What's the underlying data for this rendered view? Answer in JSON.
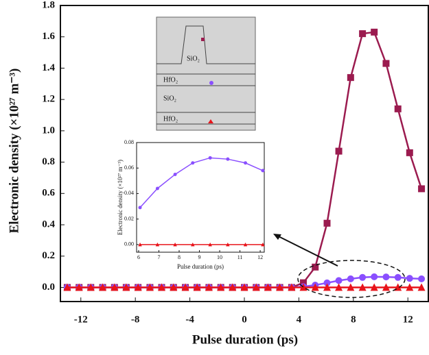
{
  "chart_data": [
    {
      "type": "line",
      "x_label": "Pulse duration (ps)",
      "y_label": "Electronic density (×10²⁷ m⁻³)",
      "x": [
        -13,
        -12.13,
        -11.27,
        -10.4,
        -9.53,
        -8.67,
        -7.8,
        -6.93,
        -6.07,
        -5.2,
        -4.33,
        -3.47,
        -2.6,
        -1.73,
        -0.87,
        0,
        0.87,
        1.73,
        2.6,
        3.47,
        4.33,
        5.2,
        6.07,
        6.93,
        7.8,
        8.67,
        9.53,
        10.4,
        11.27,
        12.13,
        13
      ],
      "xlim": [
        -13.5,
        13.5
      ],
      "xticks": [
        -12,
        -8,
        -4,
        0,
        4,
        8,
        12
      ],
      "ylim": [
        -0.09,
        1.8
      ],
      "yticks": [
        {
          "value": 0,
          "label": "0.0"
        },
        0.2,
        0.4,
        0.6,
        0.8,
        {
          "value": 1,
          "label": "1.0"
        },
        1.2,
        1.4,
        1.6,
        1.8
      ],
      "series": [
        {
          "marker": "square",
          "color": "#9b1b4f",
          "values": [
            0,
            0,
            0,
            0,
            0,
            0,
            0,
            0,
            0,
            0,
            0,
            0,
            0,
            0,
            0,
            0,
            0,
            0,
            0,
            0,
            0.03,
            0.13,
            0.41,
            0.87,
            1.34,
            1.62,
            1.63,
            1.43,
            1.14,
            0.86,
            0.63
          ]
        },
        {
          "marker": "circle",
          "color": "#8a4fff",
          "values": [
            0,
            0,
            0,
            0,
            0,
            0,
            0,
            0,
            0,
            0,
            0,
            0,
            0,
            0,
            0,
            0,
            0,
            0,
            0,
            0,
            0.005,
            0.015,
            0.029,
            0.044,
            0.055,
            0.064,
            0.068,
            0.067,
            0.064,
            0.058,
            0.055
          ]
        },
        {
          "marker": "triangle",
          "color": "#e8141b",
          "values": [
            0,
            0,
            0,
            0,
            0,
            0,
            0,
            0,
            0,
            0,
            0,
            0,
            0,
            0,
            0,
            0,
            0,
            0,
            0,
            0,
            0,
            0,
            0,
            0,
            0,
            0,
            0,
            0,
            0,
            0,
            0
          ]
        }
      ]
    },
    {
      "type": "line",
      "x_label": "Pulse duration (ps)",
      "y_label": "Electronic density (×10²⁷ m⁻³)",
      "x": [
        6.07,
        6.93,
        7.8,
        8.67,
        9.53,
        10.4,
        11.27,
        12.13
      ],
      "xlim": [
        5.9,
        12.2
      ],
      "xticks": [
        6,
        7,
        8,
        9,
        10,
        11,
        12
      ],
      "ylim": [
        -0.006,
        0.08
      ],
      "yticks": [
        {
          "value": 0,
          "label": "0.00"
        },
        0.02,
        0.04,
        0.06,
        0.08
      ],
      "series": [
        {
          "marker": "circle",
          "color": "#8a4fff",
          "values": [
            0.029,
            0.044,
            0.055,
            0.064,
            0.068,
            0.067,
            0.064,
            0.058
          ]
        },
        {
          "marker": "triangle",
          "color": "#e8141b",
          "values": [
            0,
            0,
            0,
            0,
            0,
            0,
            0,
            0
          ]
        }
      ]
    }
  ],
  "inset_diagram": {
    "layers": [
      "SiO₂",
      "HfO₂",
      "SiO₂",
      "HfO₂"
    ]
  }
}
